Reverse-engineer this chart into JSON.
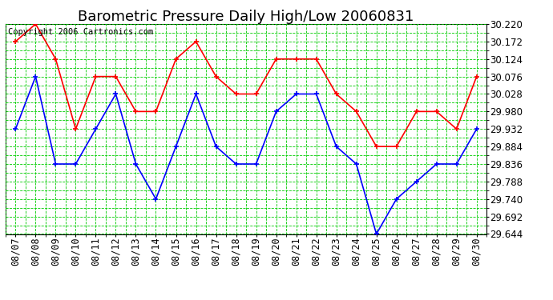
{
  "title": "Barometric Pressure Daily High/Low 20060831",
  "copyright": "Copyright 2006 Cartronics.com",
  "dates": [
    "08/07",
    "08/08",
    "08/09",
    "08/10",
    "08/11",
    "08/12",
    "08/13",
    "08/14",
    "08/15",
    "08/16",
    "08/17",
    "08/18",
    "08/19",
    "08/20",
    "08/21",
    "08/22",
    "08/23",
    "08/24",
    "08/25",
    "08/26",
    "08/27",
    "08/28",
    "08/29",
    "08/30"
  ],
  "high": [
    30.172,
    30.22,
    30.124,
    29.932,
    30.076,
    30.076,
    29.98,
    29.98,
    30.124,
    30.172,
    30.076,
    30.028,
    30.028,
    30.124,
    30.124,
    30.124,
    30.028,
    29.98,
    29.884,
    29.884,
    29.98,
    29.98,
    29.932,
    30.076
  ],
  "low": [
    29.932,
    30.076,
    29.836,
    29.836,
    29.932,
    30.028,
    29.836,
    29.74,
    29.884,
    30.028,
    29.884,
    29.836,
    29.836,
    29.98,
    30.028,
    30.028,
    29.884,
    29.836,
    29.644,
    29.74,
    29.788,
    29.836,
    29.836,
    29.932
  ],
  "ylim_min": 29.644,
  "ylim_max": 30.22,
  "ytick_step": 0.048,
  "high_color": "#ff0000",
  "low_color": "#0000ff",
  "bg_color": "#ffffff",
  "plot_bg_color": "#ffffff",
  "grid_major_color": "#00cc00",
  "grid_minor_color": "#00cc00",
  "title_fontsize": 13,
  "tick_fontsize": 8.5,
  "copyright_fontsize": 7.5
}
